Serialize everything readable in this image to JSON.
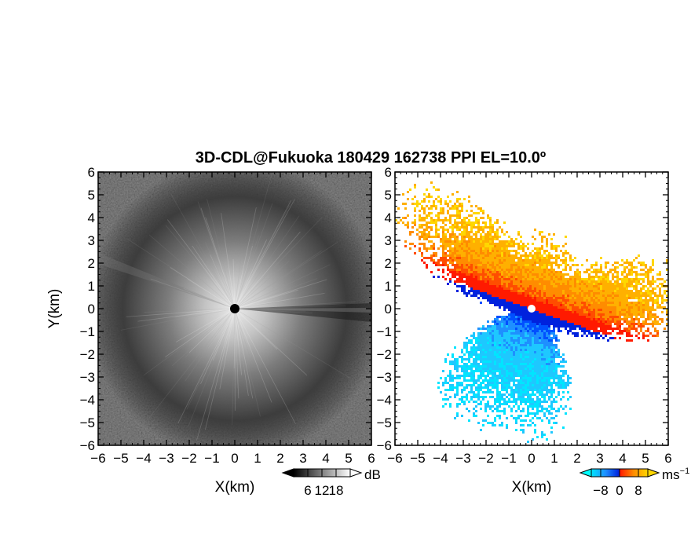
{
  "title": "3D-CDL@Fukuoka 180429 162738 PPI EL=10.0º",
  "chart_data": [
    {
      "type": "heatmap",
      "panel": "left",
      "field": "backscatter intensity (grayscale)",
      "xlabel": "X(km)",
      "ylabel": "Y(km)",
      "xlim": [
        -6,
        6
      ],
      "ylim": [
        -6,
        6
      ],
      "xticks": [
        "−6",
        "−5",
        "−4",
        "−3",
        "−2",
        "−1",
        "0",
        "1",
        "2",
        "3",
        "4",
        "5",
        "6"
      ],
      "yticks": [
        "−6",
        "−5",
        "−4",
        "−3",
        "−2",
        "−1",
        "0",
        "1",
        "2",
        "3",
        "4",
        "5",
        "6"
      ],
      "colorbar": {
        "unit": "dB",
        "range": [
          0,
          24
        ],
        "ticks": [
          6,
          12,
          18
        ],
        "tick_labels": [
          "6",
          "12",
          "18"
        ],
        "colors": [
          "#000000",
          "#ffffff"
        ],
        "extend": "both"
      }
    },
    {
      "type": "heatmap",
      "panel": "right",
      "field": "Doppler velocity",
      "xlabel": "X(km)",
      "ylabel": "",
      "xlim": [
        -6,
        6
      ],
      "ylim": [
        -6,
        6
      ],
      "xticks": [
        "−6",
        "−5",
        "−4",
        "−3",
        "−2",
        "−1",
        "0",
        "1",
        "2",
        "3",
        "4",
        "5",
        "6"
      ],
      "yticks": [
        "−6",
        "−5",
        "−4",
        "−3",
        "−2",
        "−1",
        "0",
        "1",
        "2",
        "3",
        "4",
        "5",
        "6"
      ],
      "colorbar": {
        "unit": "ms",
        "unit_superscript": "−1",
        "range": [
          -12,
          12
        ],
        "ticks": [
          -8,
          0,
          8
        ],
        "tick_labels": [
          "−8",
          "0",
          "8"
        ],
        "colors": [
          "#00ffff",
          "#1e90ff",
          "#0022dd",
          "#ff0000",
          "#ff8c00",
          "#ffd700"
        ],
        "extend": "both"
      }
    }
  ]
}
